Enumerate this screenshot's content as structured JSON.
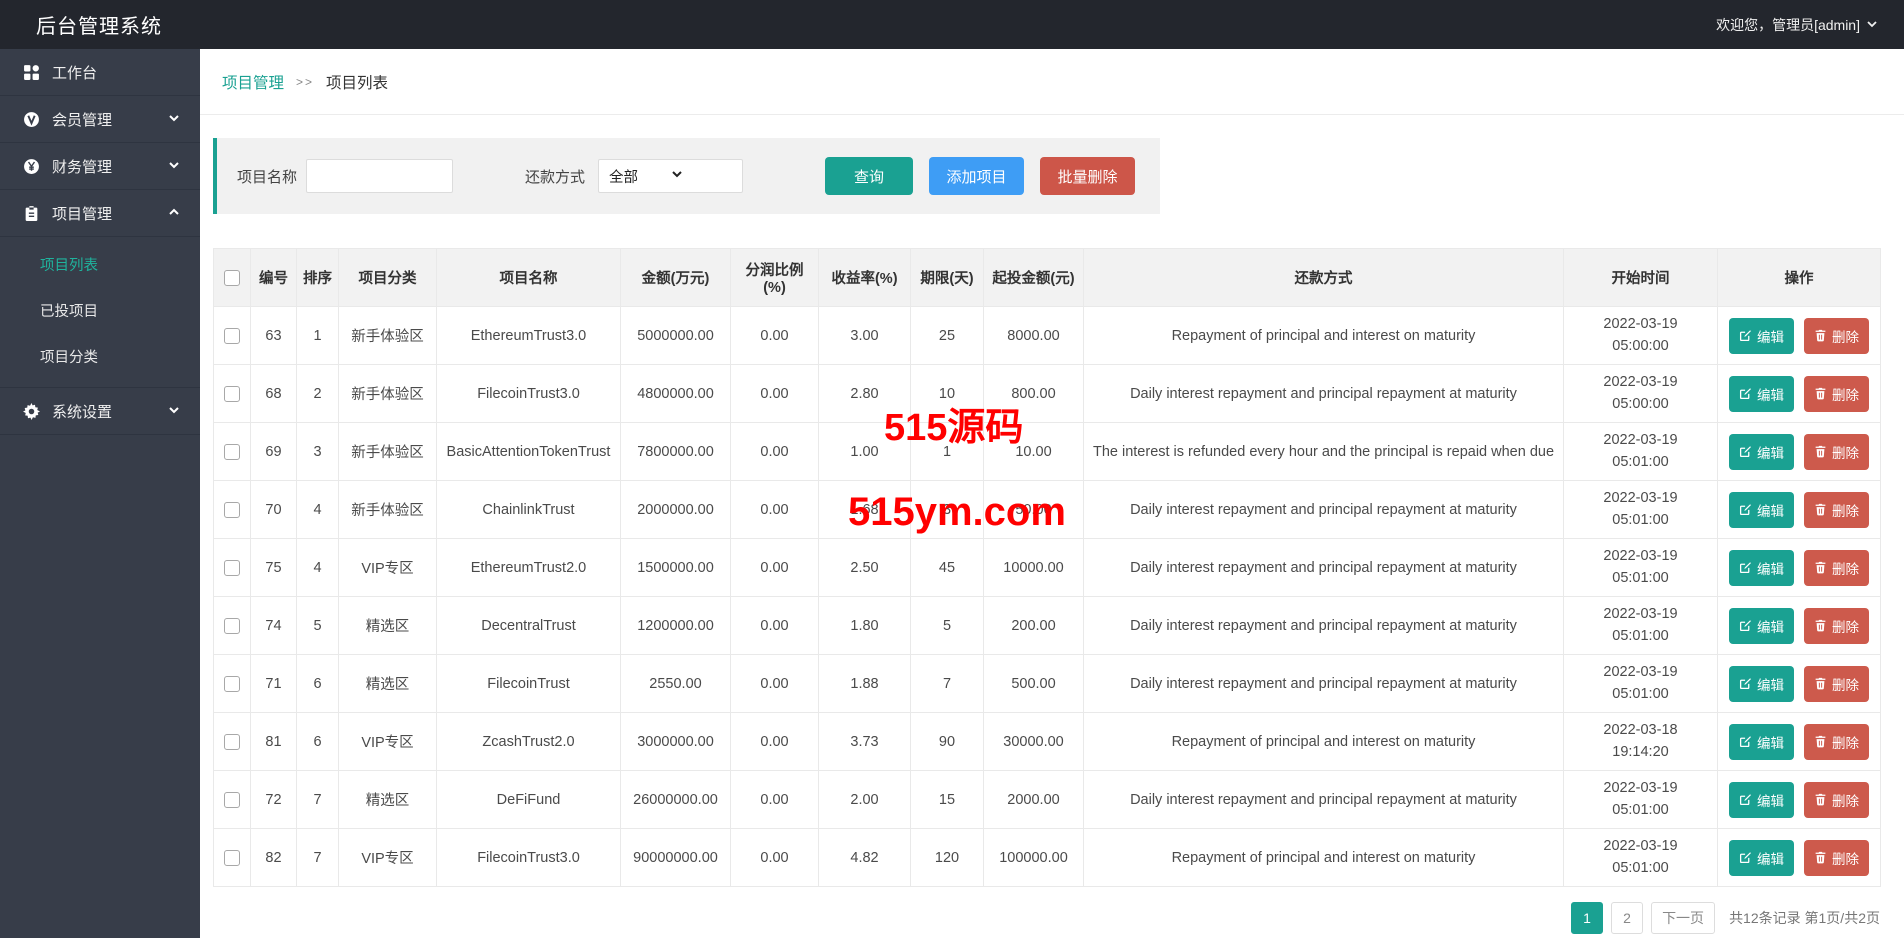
{
  "app": {
    "title": "后台管理系统",
    "welcome": "欢迎您，管理员[admin]"
  },
  "sidebar": {
    "items": [
      {
        "label": "工作台",
        "icon": "dashboard-icon"
      },
      {
        "label": "会员管理",
        "icon": "member-icon"
      },
      {
        "label": "财务管理",
        "icon": "finance-icon"
      },
      {
        "label": "项目管理",
        "icon": "project-icon",
        "children": [
          "项目列表",
          "已投项目",
          "项目分类"
        ]
      },
      {
        "label": "系统设置",
        "icon": "gear-icon"
      }
    ],
    "active_child": "项目列表"
  },
  "breadcrumb": {
    "parent": "项目管理",
    "separator": ">>",
    "current": "项目列表"
  },
  "filter": {
    "name_label": "项目名称",
    "repay_label": "还款方式",
    "repay_value": "全部",
    "search_button": "查询",
    "add_button": "添加项目",
    "batch_delete_button": "批量删除"
  },
  "table": {
    "headers": [
      "编号",
      "排序",
      "项目分类",
      "项目名称",
      "金额(万元)",
      "分润比例(%)",
      "收益率(%)",
      "期限(天)",
      "起投金额(元)",
      "还款方式",
      "开始时间",
      "操作"
    ],
    "edit_label": "编辑",
    "delete_label": "删除",
    "rows": [
      {
        "id": "63",
        "sort": "1",
        "category": "新手体验区",
        "name": "EthereumTrust3.0",
        "amount": "5000000.00",
        "share": "0.00",
        "rate": "3.00",
        "term": "25",
        "min_invest": "8000.00",
        "repayment": "Repayment of principal and interest on maturity",
        "date": "2022-03-19",
        "time": "05:00:00"
      },
      {
        "id": "68",
        "sort": "2",
        "category": "新手体验区",
        "name": "FilecoinTrust3.0",
        "amount": "4800000.00",
        "share": "0.00",
        "rate": "2.80",
        "term": "10",
        "min_invest": "800.00",
        "repayment": "Daily interest repayment and principal repayment at maturity",
        "date": "2022-03-19",
        "time": "05:00:00"
      },
      {
        "id": "69",
        "sort": "3",
        "category": "新手体验区",
        "name": "BasicAttentionTokenTrust",
        "amount": "7800000.00",
        "share": "0.00",
        "rate": "1.00",
        "term": "1",
        "min_invest": "10.00",
        "repayment": "The interest is refunded every hour and the principal is repaid when due",
        "date": "2022-03-19",
        "time": "05:01:00"
      },
      {
        "id": "70",
        "sort": "4",
        "category": "新手体验区",
        "name": "ChainlinkTrust",
        "amount": "2000000.00",
        "share": "0.00",
        "rate": "1.68",
        "term": "3",
        "min_invest": "50.00",
        "repayment": "Daily interest repayment and principal repayment at maturity",
        "date": "2022-03-19",
        "time": "05:01:00"
      },
      {
        "id": "75",
        "sort": "4",
        "category": "VIP专区",
        "name": "EthereumTrust2.0",
        "amount": "1500000.00",
        "share": "0.00",
        "rate": "2.50",
        "term": "45",
        "min_invest": "10000.00",
        "repayment": "Daily interest repayment and principal repayment at maturity",
        "date": "2022-03-19",
        "time": "05:01:00"
      },
      {
        "id": "74",
        "sort": "5",
        "category": "精选区",
        "name": "DecentralTrust",
        "amount": "1200000.00",
        "share": "0.00",
        "rate": "1.80",
        "term": "5",
        "min_invest": "200.00",
        "repayment": "Daily interest repayment and principal repayment at maturity",
        "date": "2022-03-19",
        "time": "05:01:00"
      },
      {
        "id": "71",
        "sort": "6",
        "category": "精选区",
        "name": "FilecoinTrust",
        "amount": "2550.00",
        "share": "0.00",
        "rate": "1.88",
        "term": "7",
        "min_invest": "500.00",
        "repayment": "Daily interest repayment and principal repayment at maturity",
        "date": "2022-03-19",
        "time": "05:01:00"
      },
      {
        "id": "81",
        "sort": "6",
        "category": "VIP专区",
        "name": "ZcashTrust2.0",
        "amount": "3000000.00",
        "share": "0.00",
        "rate": "3.73",
        "term": "90",
        "min_invest": "30000.00",
        "repayment": "Repayment of principal and interest on maturity",
        "date": "2022-03-18",
        "time": "19:14:20"
      },
      {
        "id": "72",
        "sort": "7",
        "category": "精选区",
        "name": "DeFiFund",
        "amount": "26000000.00",
        "share": "0.00",
        "rate": "2.00",
        "term": "15",
        "min_invest": "2000.00",
        "repayment": "Daily interest repayment and principal repayment at maturity",
        "date": "2022-03-19",
        "time": "05:01:00"
      },
      {
        "id": "82",
        "sort": "7",
        "category": "VIP专区",
        "name": "FilecoinTrust3.0",
        "amount": "90000000.00",
        "share": "0.00",
        "rate": "4.82",
        "term": "120",
        "min_invest": "100000.00",
        "repayment": "Repayment of principal and interest on maturity",
        "date": "2022-03-19",
        "time": "05:01:00"
      }
    ]
  },
  "pagination": {
    "pages": [
      "1",
      "2"
    ],
    "active": "1",
    "next_label": "下一页",
    "summary": "共12条记录 第1页/共2页"
  },
  "watermarks": {
    "wm1": "515源码",
    "wm2": "515ym.com"
  },
  "colors": {
    "teal": "#1aa192",
    "blue": "#3e9df5",
    "red": "#cd5649",
    "topbar": "#23262d",
    "sidebar": "#373d49",
    "panel": "#f1f1f1",
    "active_menu": "#1fb39d",
    "watermark_red": "#ff0000"
  }
}
